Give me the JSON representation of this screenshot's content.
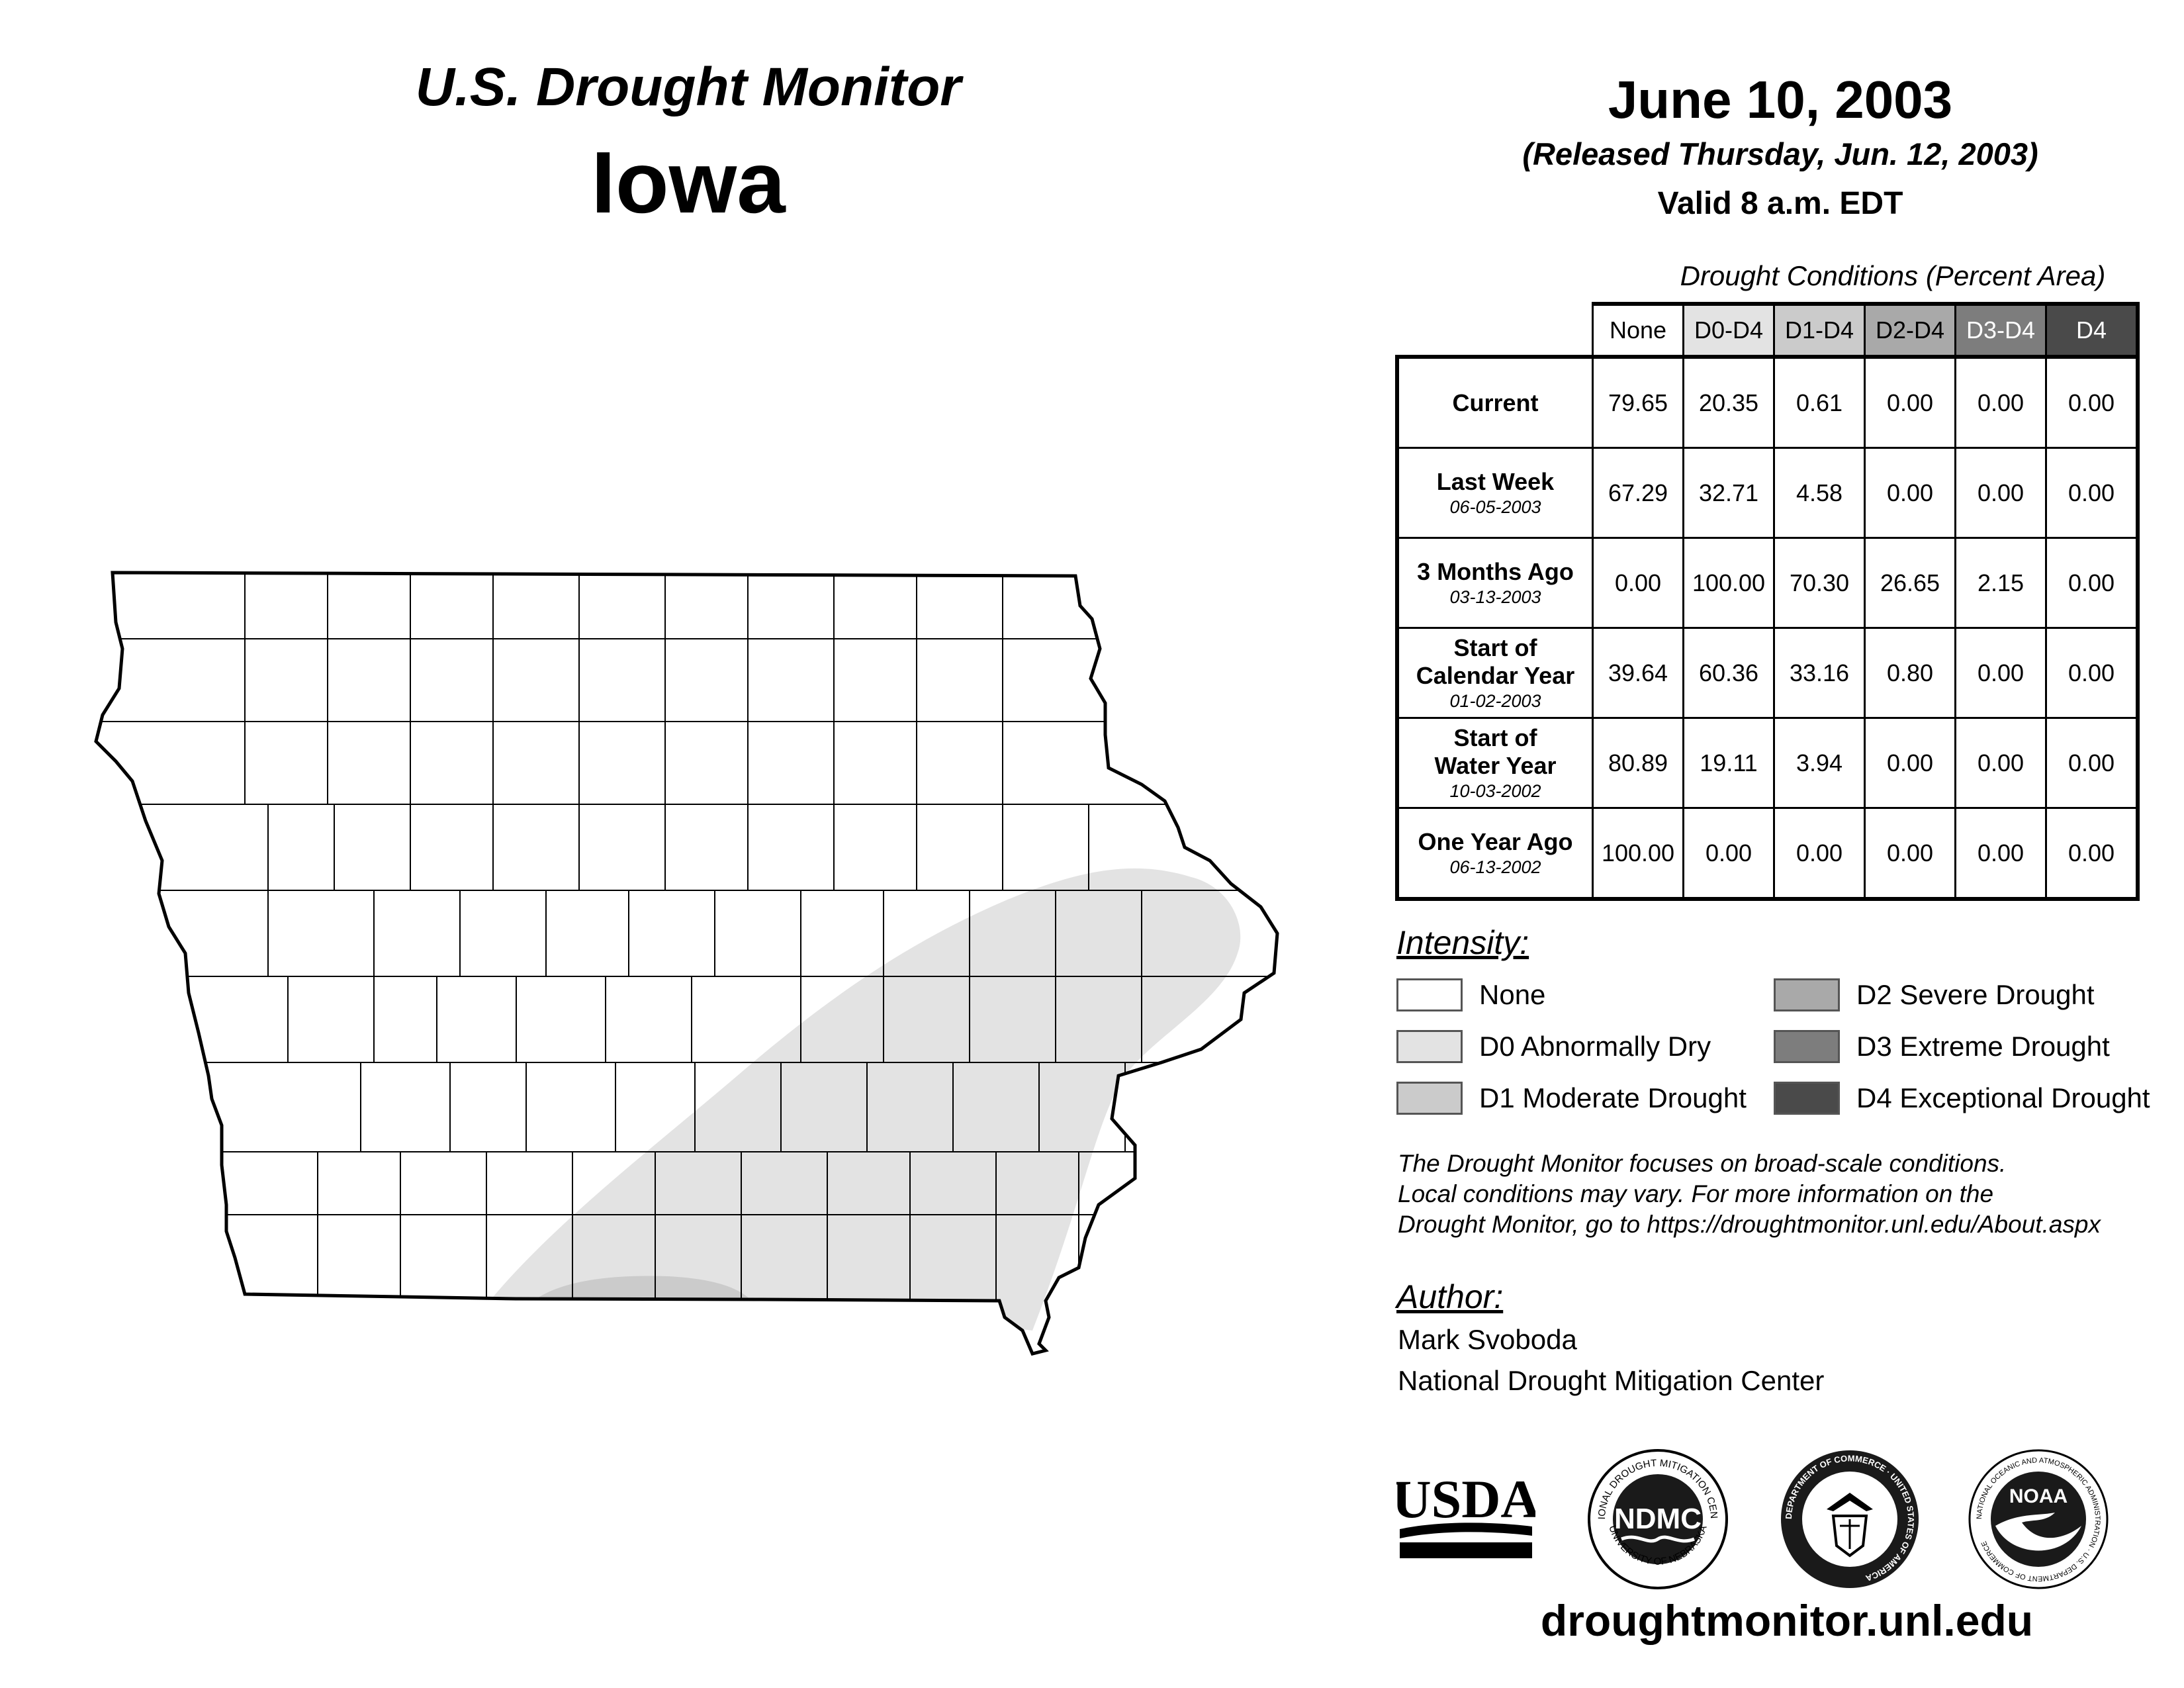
{
  "header": {
    "map_title": "U.S. Drought Monitor",
    "state": "Iowa",
    "date": "June 10, 2003",
    "released": "(Released Thursday, Jun. 12, 2003)",
    "valid": "Valid 8 a.m. EDT"
  },
  "table": {
    "caption": "Drought Conditions (Percent Area)",
    "columns": [
      "None",
      "D0-D4",
      "D1-D4",
      "D2-D4",
      "D3-D4",
      "D4"
    ],
    "rows": [
      {
        "label": "Current",
        "label2": "",
        "date": "",
        "values": [
          "79.65",
          "20.35",
          "0.61",
          "0.00",
          "0.00",
          "0.00"
        ]
      },
      {
        "label": "Last Week",
        "label2": "",
        "date": "06-05-2003",
        "values": [
          "67.29",
          "32.71",
          "4.58",
          "0.00",
          "0.00",
          "0.00"
        ]
      },
      {
        "label": "3 Months Ago",
        "label2": "",
        "date": "03-13-2003",
        "values": [
          "0.00",
          "100.00",
          "70.30",
          "26.65",
          "2.15",
          "0.00"
        ]
      },
      {
        "label": "Start of",
        "label2": "Calendar Year",
        "date": "01-02-2003",
        "values": [
          "39.64",
          "60.36",
          "33.16",
          "0.80",
          "0.00",
          "0.00"
        ]
      },
      {
        "label": "Start of",
        "label2": "Water Year",
        "date": "10-03-2002",
        "values": [
          "80.89",
          "19.11",
          "3.94",
          "0.00",
          "0.00",
          "0.00"
        ]
      },
      {
        "label": "One Year Ago",
        "label2": "",
        "date": "06-13-2002",
        "values": [
          "100.00",
          "0.00",
          "0.00",
          "0.00",
          "0.00",
          "0.00"
        ]
      }
    ]
  },
  "intensity": {
    "heading": "Intensity:",
    "items": [
      {
        "label": "None",
        "color": "#ffffff"
      },
      {
        "label": "D0 Abnormally Dry",
        "color": "#e3e3e3"
      },
      {
        "label": "D1 Moderate Drought",
        "color": "#cbcbcb"
      },
      {
        "label": "D2 Severe Drought",
        "color": "#a9a9a9"
      },
      {
        "label": "D3 Extreme Drought",
        "color": "#7d7d7d"
      },
      {
        "label": "D4 Exceptional Drought",
        "color": "#4a4a4a"
      }
    ]
  },
  "note": {
    "line1": "The Drought Monitor focuses on broad-scale conditions.",
    "line2": "Local conditions may vary. For more information on the",
    "line3": "Drought Monitor, go to https://droughtmonitor.unl.edu/About.aspx"
  },
  "author": {
    "heading": "Author:",
    "name": "Mark Svoboda",
    "org": "National Drought Mitigation Center"
  },
  "logos": {
    "usda": "USDA",
    "ndmc": "NDMC",
    "ndmc_ring_top": "NATIONAL DROUGHT MITIGATION CENTER",
    "ndmc_ring_bottom": "UNIVERSITY OF NEBRASKA",
    "doc_ring": "DEPARTMENT OF COMMERCE · UNITED STATES OF AMERICA",
    "noaa": "NOAA",
    "noaa_ring": "NATIONAL OCEANIC AND ATMOSPHERIC ADMINISTRATION · U.S. DEPARTMENT OF COMMERCE"
  },
  "website": "droughtmonitor.unl.edu"
}
